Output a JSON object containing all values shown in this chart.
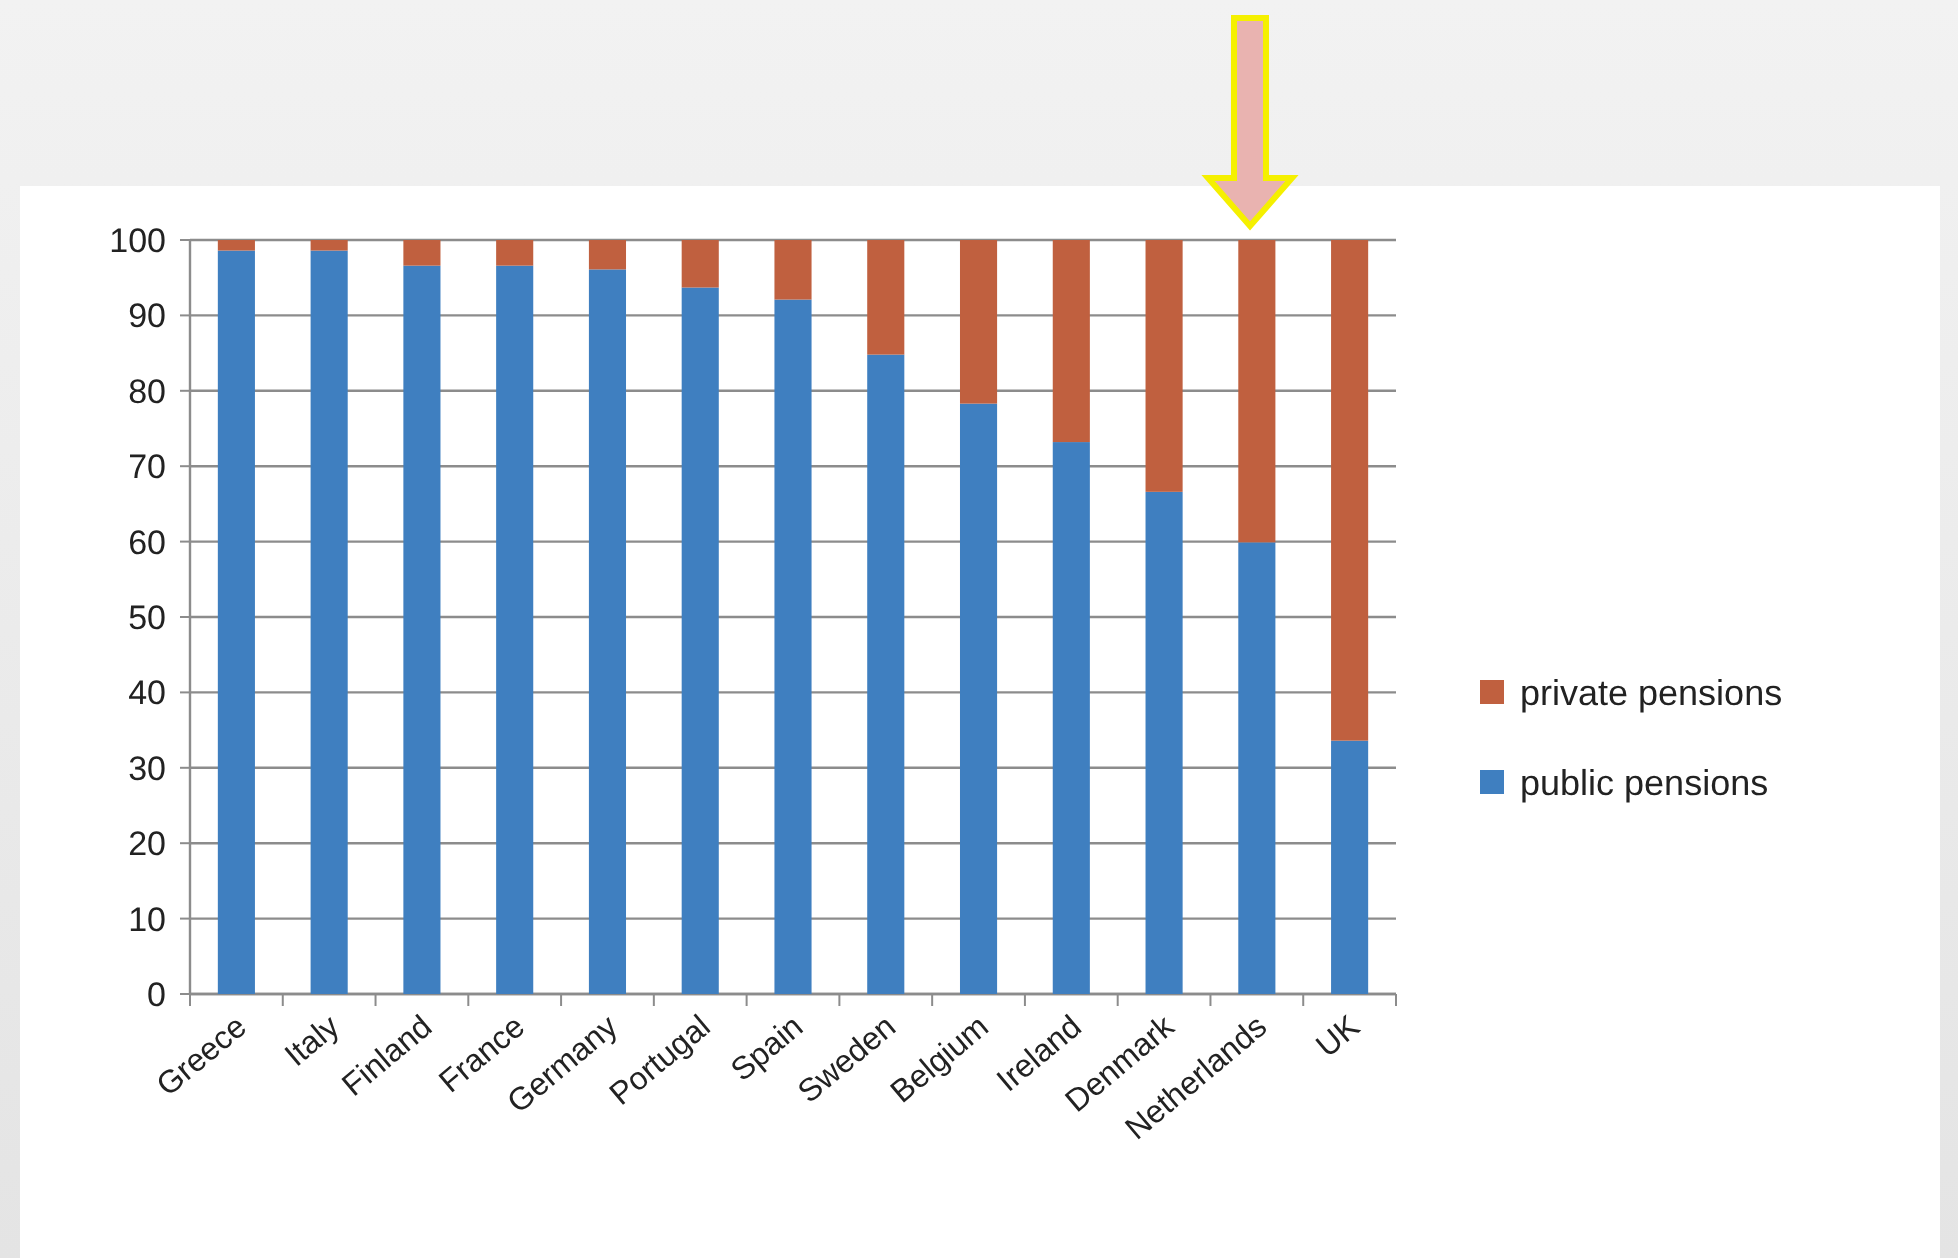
{
  "chart_data": {
    "type": "bar",
    "stacked": true,
    "categories": [
      "Greece",
      "Italy",
      "Finland",
      "France",
      "Germany",
      "Portugal",
      "Spain",
      "Sweden",
      "Belgium",
      "Ireland",
      "Denmark",
      "Netherlands",
      "UK"
    ],
    "series": [
      {
        "name": "public pensions",
        "color": "#3f7fc0",
        "values": [
          98.6,
          98.6,
          96.6,
          96.6,
          96.1,
          93.7,
          92.1,
          84.8,
          78.3,
          73.2,
          66.6,
          59.9,
          33.6
        ]
      },
      {
        "name": "private pensions",
        "color": "#c0603f",
        "values": [
          1.4,
          1.4,
          3.4,
          3.4,
          3.9,
          6.3,
          7.9,
          15.2,
          21.7,
          26.8,
          33.4,
          40.1,
          66.4
        ]
      }
    ],
    "ylim": [
      0,
      100
    ],
    "yticks": [
      0,
      10,
      20,
      30,
      40,
      50,
      60,
      70,
      80,
      90,
      100
    ],
    "grid": "y",
    "legend": "right"
  }
}
